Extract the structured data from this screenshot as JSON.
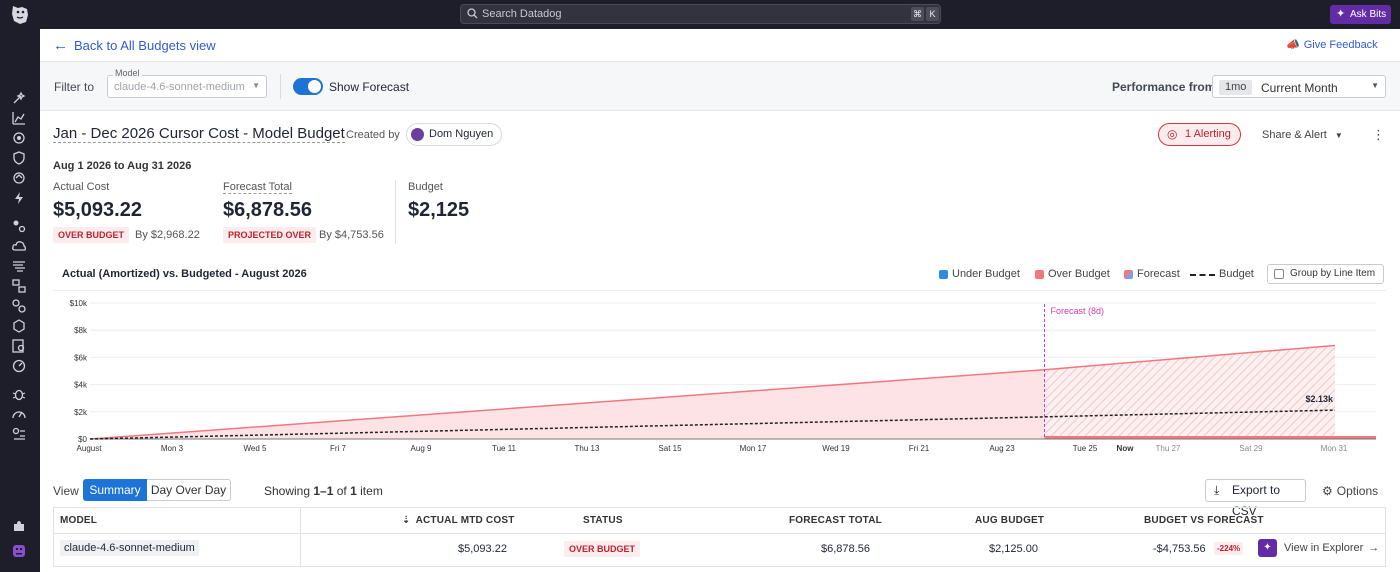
{
  "topbar": {
    "search_placeholder": "Search Datadog",
    "kbd_cmd": "⌘",
    "kbd_k": "K",
    "ask_bits": "Ask Bits"
  },
  "header": {
    "back_label": "Back to All Budgets view",
    "feedback_label": "Give Feedback"
  },
  "filters": {
    "filter_label": "Filter to",
    "model_caption": "Model",
    "model_value": "claude-4.6-sonnet-medium",
    "show_forecast_label": "Show Forecast",
    "show_forecast_on": true,
    "performance_label": "Performance from",
    "performance_pill": "1mo",
    "performance_value": "Current Month"
  },
  "budget": {
    "title": "Jan - Dec 2026 Cursor Cost - Model Budget",
    "created_by_label": "Created by",
    "creator": "Dom Nguyen",
    "alerting_label": "1 Alerting",
    "share_label": "Share & Alert",
    "date_range": "Aug 1 2026 to Aug 31 2026"
  },
  "metrics": {
    "actual_label": "Actual Cost",
    "actual_value": "$5,093.22",
    "actual_badge": "OVER BUDGET",
    "actual_by": "By $2,968.22",
    "forecast_label": "Forecast Total",
    "forecast_value": "$6,878.56",
    "forecast_badge": "PROJECTED OVER",
    "forecast_by": "By $4,753.56",
    "budget_label": "Budget",
    "budget_value": "$2,125"
  },
  "chart": {
    "title": "Actual (Amortized) vs. Budgeted - August 2026",
    "legend": {
      "under": "Under Budget",
      "over": "Over Budget",
      "forecast": "Forecast",
      "budget": "Budget"
    },
    "group_label": "Group by Line Item",
    "forecast_marker_label": "Forecast (8d)",
    "budget_end_label": "$2.13k",
    "colors": {
      "over": "#f4777f",
      "over_fill": "#fde3e5",
      "under": "#2f8ae5",
      "budget_line": "#222222",
      "forecast_marker": "#d63cb4"
    }
  },
  "chart_data": {
    "type": "area",
    "title": "Actual (Amortized) vs. Budgeted - August 2026",
    "x_ticks": [
      "August",
      "Mon 3",
      "Wed 5",
      "Fri 7",
      "Aug 9",
      "Tue 11",
      "Thu 13",
      "Sat 15",
      "Mon 17",
      "Wed 19",
      "Fri 21",
      "Aug 23",
      "Tue 25",
      "Now",
      "Thu 27",
      "Sat 29",
      "Mon 31"
    ],
    "y_ticks": [
      "$0",
      "$2k",
      "$4k",
      "$6k",
      "$8k",
      "$10k"
    ],
    "ylim": [
      0,
      10000
    ],
    "x_range_days": [
      1,
      31
    ],
    "forecast_start_day": 24,
    "series": [
      {
        "name": "Over Budget",
        "x": [
          1,
          24
        ],
        "y": [
          0,
          5093.22
        ]
      },
      {
        "name": "Forecast",
        "x": [
          24,
          31
        ],
        "y": [
          5093.22,
          6878.56
        ]
      },
      {
        "name": "Budget",
        "x": [
          1,
          31
        ],
        "y": [
          0,
          2125
        ]
      }
    ],
    "grid": true,
    "legend_position": "top-right"
  },
  "table": {
    "view_label": "View",
    "tab_summary": "Summary",
    "tab_dod": "Day Over Day",
    "showing_prefix": "Showing",
    "showing_range": "1–1",
    "showing_of": "of",
    "showing_total": "1",
    "showing_suffix": "item",
    "export_label": "Export to CSV",
    "options_label": "Options",
    "columns": {
      "model": "MODEL",
      "actual": "ACTUAL MTD COST",
      "status": "STATUS",
      "forecast": "FORECAST TOTAL",
      "budget": "AUG BUDGET",
      "vs": "BUDGET VS FORECAST"
    },
    "row": {
      "model": "claude-4.6-sonnet-medium",
      "actual": "$5,093.22",
      "status": "OVER BUDGET",
      "forecast": "$6,878.56",
      "budget": "$2,125.00",
      "vs": "-$4,753.56",
      "vs_pct": "-224%",
      "explorer": "View in Explorer"
    }
  }
}
